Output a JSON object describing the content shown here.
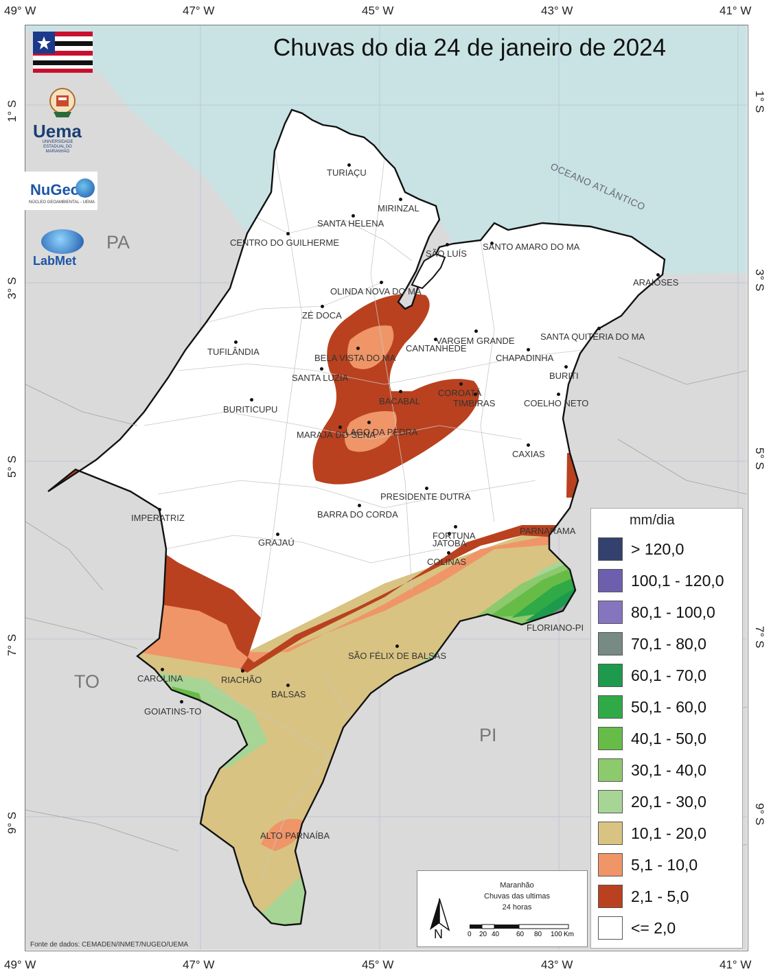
{
  "title": "Chuvas do dia 24 de janeiro de 2024",
  "axes": {
    "lon_labels": [
      "49° W",
      "47° W",
      "45° W",
      "43° W",
      "41° W"
    ],
    "lat_labels": [
      "1° S",
      "3° S",
      "5° S",
      "7° S",
      "9° S"
    ]
  },
  "states": [
    "PA",
    "TO",
    "PI"
  ],
  "ocean_label": "OCEANO ATLÂNTICO",
  "cities": [
    "TURIAÇU",
    "MIRINZAL",
    "SANTA HELENA",
    "CENTRO DO GUILHERME",
    "SÃO LUÍS",
    "SANTO AMARO DO MA",
    "ARAIOSES",
    "OLINDA NOVA DO MA",
    "ZÉ DOCA",
    "VARGEM GRANDE",
    "CANTANHEDE",
    "SANTA QUITÉRIA DO MA",
    "TUFILÂNDIA",
    "BELA VISTA DO MA",
    "CHAPADINHA",
    "SANTA LUZIA",
    "BURITI",
    "COROATÁ",
    "TIMBIRAS",
    "BACABAL",
    "COELHO NETO",
    "BURITICUPU",
    "LAGO DA PEDRA",
    "MARAJÁ DO SENA",
    "CAXIAS",
    "PRESIDENTE DUTRA",
    "IMPERATRIZ",
    "BARRA DO CORDA",
    "PARNARAMA",
    "FORTUNA",
    "GRAJAÚ",
    "JATOBÁ",
    "COLINAS",
    "FLORIANO-PI",
    "SÃO FÉLIX DE BALSAS",
    "CAROLINA",
    "RIACHÃO",
    "BALSAS",
    "GOIATINS-TO",
    "ALTO PARNAÍBA"
  ],
  "legend": {
    "title": "mm/dia",
    "items": [
      {
        "label": "> 120,0",
        "color": "#34416f"
      },
      {
        "label": "100,1 - 120,0",
        "color": "#6e5fae"
      },
      {
        "label": "80,1 - 100,0",
        "color": "#8575bf"
      },
      {
        "label": "70,1 - 80,0",
        "color": "#778a84"
      },
      {
        "label": "60,1 - 70,0",
        "color": "#1e9a4d"
      },
      {
        "label": "50,1 - 60,0",
        "color": "#2faa47"
      },
      {
        "label": "40,1 - 50,0",
        "color": "#66bc47"
      },
      {
        "label": "30,1 - 40,0",
        "color": "#8dc96d"
      },
      {
        "label": "20,1 - 30,0",
        "color": "#a7d595"
      },
      {
        "label": "10,1 - 20,0",
        "color": "#d8c382"
      },
      {
        "label": "5,1 - 10,0",
        "color": "#ef9567"
      },
      {
        "label": "2,1 - 5,0",
        "color": "#b9411f"
      },
      {
        "label": "<= 2,0",
        "color": "#ffffff"
      }
    ]
  },
  "scalebox": {
    "line1": "Maranhão",
    "line2": "Chuvas das ultimas",
    "line3": "24 horas",
    "north": "N",
    "scale_ticks": [
      "0",
      "20",
      "40",
      "60",
      "80",
      "100"
    ],
    "scale_unit": "Km"
  },
  "source": "Fonte de dados: CEMADEN/INMET/NUGEO/UEMA",
  "logos": {
    "uema": "Uema",
    "uema_sub": "UNIVERSIDADE ESTADUAL DO MARANHÃO",
    "nugeo": "NuGeo",
    "nugeo_sub": "NÚCLEO GEOAMBIENTAL - UEMA",
    "labmet": "LabMet"
  }
}
